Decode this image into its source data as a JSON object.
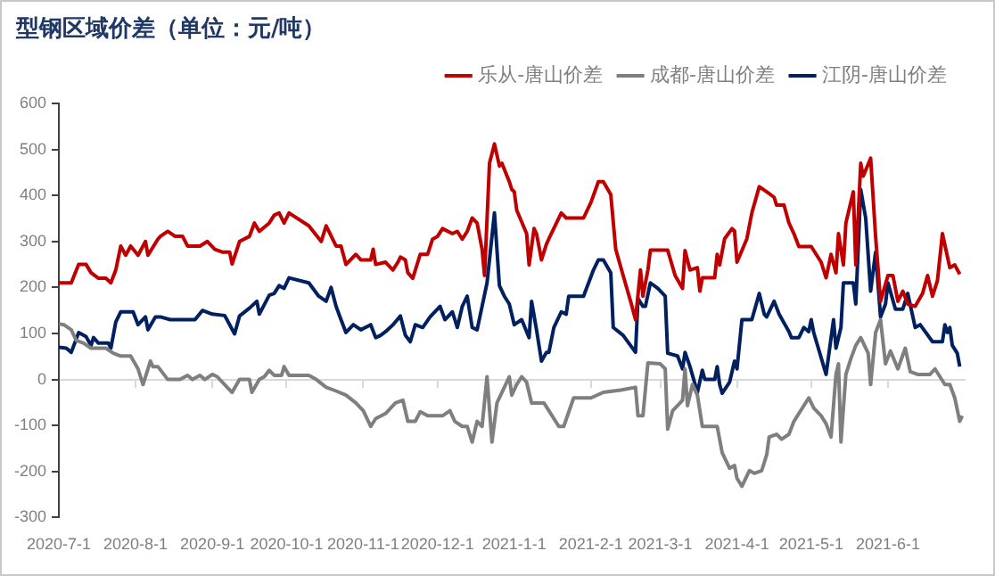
{
  "chart_data": {
    "type": "line",
    "title": "型钢区域价差（单位：元/吨）",
    "legend": "top right",
    "marker": "none",
    "line_style": "solid",
    "xlim": [
      "2020-07-01",
      "2021-07-02"
    ],
    "xticks": [
      {
        "value": "2020-07-01",
        "label": "2020-7-1"
      },
      {
        "value": "2020-08-01",
        "label": "2020-8-1"
      },
      {
        "value": "2020-09-01",
        "label": "2020-9-1"
      },
      {
        "value": "2020-10-01",
        "label": "2020-10-1"
      },
      {
        "value": "2020-11-01",
        "label": "2020-11-1"
      },
      {
        "value": "2020-12-01",
        "label": "2020-12-1"
      },
      {
        "value": "2021-01-01",
        "label": "2021-1-1"
      },
      {
        "value": "2021-02-01",
        "label": "2021-2-1"
      },
      {
        "value": "2021-03-01",
        "label": "2021-3-1"
      },
      {
        "value": "2021-04-01",
        "label": "2021-4-1"
      },
      {
        "value": "2021-05-01",
        "label": "2021-5-1"
      },
      {
        "value": "2021-06-01",
        "label": "2021-6-1"
      }
    ],
    "ylim": [
      -300,
      600
    ],
    "yticks": [
      -300,
      -200,
      -100,
      0,
      100,
      200,
      300,
      400,
      500,
      600
    ],
    "series": [
      {
        "name": "乐从-唐山价差",
        "color": "#c00000",
        "x": [
          "2020-07-01",
          "2020-07-06",
          "2020-07-09",
          "2020-07-12",
          "2020-07-14",
          "2020-07-17",
          "2020-07-20",
          "2020-07-22",
          "2020-07-24",
          "2020-07-26",
          "2020-07-28",
          "2020-07-30",
          "2020-08-02",
          "2020-08-05",
          "2020-08-06",
          "2020-08-10",
          "2020-08-11",
          "2020-08-14",
          "2020-08-17",
          "2020-08-20",
          "2020-08-22",
          "2020-08-27",
          "2020-08-30",
          "2020-09-02",
          "2020-09-05",
          "2020-09-08",
          "2020-09-09",
          "2020-09-12",
          "2020-09-16",
          "2020-09-18",
          "2020-09-20",
          "2020-09-24",
          "2020-09-26",
          "2020-09-28",
          "2020-09-30",
          "2020-10-02",
          "2020-10-10",
          "2020-10-15",
          "2020-10-17",
          "2020-10-21",
          "2020-10-23",
          "2020-10-25",
          "2020-10-29",
          "2020-10-31",
          "2020-11-04",
          "2020-11-05",
          "2020-11-06",
          "2020-11-10",
          "2020-11-13",
          "2020-11-15",
          "2020-11-16",
          "2020-11-18",
          "2020-11-19",
          "2020-11-21",
          "2020-11-24",
          "2020-11-27",
          "2020-11-29",
          "2020-12-01",
          "2020-12-03",
          "2020-12-07",
          "2020-12-09",
          "2020-12-11",
          "2020-12-13",
          "2020-12-15",
          "2020-12-17",
          "2020-12-19",
          "2020-12-20",
          "2020-12-22",
          "2020-12-24",
          "2020-12-26",
          "2020-12-27",
          "2020-12-30",
          "2020-12-31",
          "2021-01-01",
          "2021-01-02",
          "2021-01-06",
          "2021-01-07",
          "2021-01-09",
          "2021-01-10",
          "2021-01-12",
          "2021-01-14",
          "2021-01-15",
          "2021-01-20",
          "2021-01-22",
          "2021-01-29",
          "2021-02-01",
          "2021-02-04",
          "2021-02-06",
          "2021-02-09",
          "2021-02-11",
          "2021-02-14",
          "2021-02-17",
          "2021-02-19",
          "2021-02-21",
          "2021-02-22",
          "2021-02-24",
          "2021-02-25",
          "2021-03-04",
          "2021-03-07",
          "2021-03-10",
          "2021-03-11",
          "2021-03-13",
          "2021-03-16",
          "2021-03-17",
          "2021-03-18",
          "2021-03-23",
          "2021-03-24",
          "2021-03-25",
          "2021-03-27",
          "2021-03-30",
          "2021-03-31",
          "2021-04-01",
          "2021-04-05",
          "2021-04-07",
          "2021-04-10",
          "2021-04-13",
          "2021-04-16",
          "2021-04-17",
          "2021-04-20",
          "2021-04-22",
          "2021-04-24",
          "2021-04-26",
          "2021-05-01",
          "2021-05-05",
          "2021-05-07",
          "2021-05-09",
          "2021-05-11",
          "2021-05-12",
          "2021-05-14",
          "2021-05-15",
          "2021-05-18",
          "2021-05-19",
          "2021-05-21",
          "2021-05-22",
          "2021-05-25",
          "2021-05-27",
          "2021-05-29",
          "2021-06-01",
          "2021-06-03",
          "2021-06-05",
          "2021-06-07",
          "2021-06-09",
          "2021-06-12",
          "2021-06-15",
          "2021-06-17",
          "2021-06-19",
          "2021-06-21",
          "2021-06-23",
          "2021-06-26",
          "2021-06-28",
          "2021-06-30"
        ],
        "values": [
          210,
          210,
          250,
          250,
          232,
          220,
          220,
          210,
          238,
          290,
          270,
          290,
          270,
          300,
          270,
          305,
          311,
          322,
          311,
          311,
          290,
          290,
          300,
          283,
          277,
          277,
          251,
          300,
          311,
          340,
          322,
          340,
          357,
          362,
          340,
          362,
          334,
          300,
          334,
          290,
          290,
          250,
          272,
          260,
          260,
          283,
          250,
          255,
          238,
          255,
          266,
          260,
          232,
          220,
          272,
          272,
          305,
          311,
          328,
          317,
          322,
          305,
          322,
          351,
          340,
          283,
          226,
          470,
          512,
          464,
          470,
          430,
          413,
          408,
          368,
          317,
          249,
          328,
          317,
          260,
          294,
          306,
          362,
          351,
          351,
          385,
          430,
          430,
          402,
          283,
          226,
          170,
          130,
          238,
          181,
          238,
          281,
          281,
          226,
          198,
          280,
          238,
          243,
          192,
          221,
          221,
          272,
          249,
          306,
          328,
          323,
          255,
          306,
          362,
          419,
          408,
          396,
          379,
          379,
          340,
          317,
          289,
          289,
          255,
          221,
          272,
          232,
          317,
          249,
          340,
          408,
          249,
          470,
          442,
          481,
          311,
          170,
          226,
          226,
          170,
          192,
          164,
          159,
          187,
          226,
          181,
          215,
          317,
          243,
          249,
          229
        ]
      },
      {
        "name": "成都-唐山价差",
        "color": "#7f7f7f",
        "x": [
          "2020-07-01",
          "2020-07-03",
          "2020-07-06",
          "2020-07-08",
          "2020-07-11",
          "2020-07-14",
          "2020-07-20",
          "2020-07-23",
          "2020-07-26",
          "2020-07-30",
          "2020-08-02",
          "2020-08-04",
          "2020-08-07",
          "2020-08-08",
          "2020-08-10",
          "2020-08-14",
          "2020-08-19",
          "2020-08-22",
          "2020-08-24",
          "2020-08-27",
          "2020-08-29",
          "2020-09-01",
          "2020-09-03",
          "2020-09-07",
          "2020-09-09",
          "2020-09-12",
          "2020-09-16",
          "2020-09-17",
          "2020-09-20",
          "2020-09-22",
          "2020-09-24",
          "2020-09-26",
          "2020-09-29",
          "2020-09-30",
          "2020-10-02",
          "2020-10-10",
          "2020-10-13",
          "2020-10-17",
          "2020-10-21",
          "2020-10-25",
          "2020-10-29",
          "2020-11-01",
          "2020-11-04",
          "2020-11-06",
          "2020-11-10",
          "2020-11-14",
          "2020-11-17",
          "2020-11-19",
          "2020-11-22",
          "2020-11-24",
          "2020-11-27",
          "2020-12-03",
          "2020-12-06",
          "2020-12-08",
          "2020-12-11",
          "2020-12-13",
          "2020-12-15",
          "2020-12-17",
          "2020-12-19",
          "2020-12-21",
          "2020-12-23",
          "2020-12-25",
          "2020-12-28",
          "2020-12-30",
          "2020-12-31",
          "2021-01-02",
          "2021-01-04",
          "2021-01-06",
          "2021-01-08",
          "2021-01-13",
          "2021-01-15",
          "2021-01-19",
          "2021-01-21",
          "2021-01-25",
          "2021-02-01",
          "2021-02-06",
          "2021-02-13",
          "2021-02-19",
          "2021-02-20",
          "2021-02-22",
          "2021-02-24",
          "2021-03-01",
          "2021-03-03",
          "2021-03-04",
          "2021-03-06",
          "2021-03-09",
          "2021-03-10",
          "2021-03-11",
          "2021-03-12",
          "2021-03-14",
          "2021-03-16",
          "2021-03-18",
          "2021-03-24",
          "2021-03-26",
          "2021-03-29",
          "2021-03-31",
          "2021-04-01",
          "2021-04-03",
          "2021-04-06",
          "2021-04-08",
          "2021-04-11",
          "2021-04-13",
          "2021-04-14",
          "2021-04-17",
          "2021-04-19",
          "2021-04-22",
          "2021-04-24",
          "2021-04-26",
          "2021-04-30",
          "2021-05-02",
          "2021-05-05",
          "2021-05-07",
          "2021-05-09",
          "2021-05-11",
          "2021-05-12",
          "2021-05-13",
          "2021-05-15",
          "2021-05-17",
          "2021-05-19",
          "2021-05-21",
          "2021-05-24",
          "2021-05-25",
          "2021-05-27",
          "2021-05-29",
          "2021-05-31",
          "2021-06-02",
          "2021-06-05",
          "2021-06-08",
          "2021-06-10",
          "2021-06-13",
          "2021-06-18",
          "2021-06-20",
          "2021-06-24",
          "2021-06-26",
          "2021-06-28",
          "2021-06-30",
          "2021-07-01"
        ],
        "values": [
          121,
          119,
          108,
          85,
          79,
          68,
          68,
          57,
          51,
          51,
          23,
          -11,
          40,
          28,
          28,
          0,
          0,
          9,
          0,
          9,
          0,
          11,
          6,
          -17,
          -28,
          0,
          0,
          -28,
          0,
          6,
          20,
          9,
          9,
          28,
          9,
          9,
          0,
          -17,
          -25,
          -34,
          -51,
          -68,
          -102,
          -85,
          -74,
          -51,
          -45,
          -91,
          -91,
          -70,
          -79,
          -79,
          -68,
          -91,
          -102,
          -102,
          -136,
          -91,
          -102,
          6,
          -136,
          -51,
          -17,
          6,
          -34,
          -11,
          6,
          -6,
          -51,
          -51,
          -68,
          -102,
          -102,
          -40,
          -40,
          -28,
          -23,
          -17,
          -79,
          -79,
          36,
          34,
          23,
          -108,
          -68,
          -51,
          -45,
          23,
          -57,
          -11,
          -34,
          -102,
          -102,
          -159,
          -193,
          -187,
          -215,
          -232,
          -198,
          -204,
          -198,
          -164,
          -125,
          -119,
          -130,
          -119,
          -91,
          -74,
          -40,
          -62,
          -79,
          -96,
          -125,
          11,
          34,
          -136,
          11,
          45,
          74,
          91,
          57,
          -11,
          102,
          130,
          34,
          62,
          23,
          68,
          17,
          11,
          11,
          23,
          -11,
          -11,
          -40,
          -91,
          -79
        ]
      },
      {
        "name": "江阴-唐山价差",
        "color": "#002060",
        "x": [
          "2020-07-01",
          "2020-07-04",
          "2020-07-06",
          "2020-07-09",
          "2020-07-12",
          "2020-07-14",
          "2020-07-15",
          "2020-07-17",
          "2020-07-21",
          "2020-07-22",
          "2020-07-24",
          "2020-07-26",
          "2020-07-28",
          "2020-07-31",
          "2020-08-02",
          "2020-08-05",
          "2020-08-06",
          "2020-08-09",
          "2020-08-11",
          "2020-08-15",
          "2020-08-25",
          "2020-08-28",
          "2020-09-01",
          "2020-09-06",
          "2020-09-10",
          "2020-09-12",
          "2020-09-16",
          "2020-09-19",
          "2020-09-20",
          "2020-09-24",
          "2020-09-26",
          "2020-09-28",
          "2020-09-30",
          "2020-10-02",
          "2020-10-10",
          "2020-10-14",
          "2020-10-17",
          "2020-10-19",
          "2020-10-21",
          "2020-10-23",
          "2020-10-25",
          "2020-10-28",
          "2020-10-31",
          "2020-11-04",
          "2020-11-06",
          "2020-11-08",
          "2020-11-10",
          "2020-11-13",
          "2020-11-16",
          "2020-11-18",
          "2020-11-20",
          "2020-11-22",
          "2020-11-25",
          "2020-11-28",
          "2020-12-02",
          "2020-12-04",
          "2020-12-07",
          "2020-12-09",
          "2020-12-11",
          "2020-12-13",
          "2020-12-15",
          "2020-12-17",
          "2020-12-21",
          "2020-12-24",
          "2020-12-26",
          "2020-12-28",
          "2020-12-30",
          "2021-01-01",
          "2021-01-04",
          "2021-01-07",
          "2021-01-08",
          "2021-01-10",
          "2021-01-12",
          "2021-01-14",
          "2021-01-15",
          "2021-01-17",
          "2021-01-20",
          "2021-01-22",
          "2021-01-23",
          "2021-01-29",
          "2021-02-02",
          "2021-02-04",
          "2021-02-06",
          "2021-02-09",
          "2021-02-10",
          "2021-02-14",
          "2021-02-19",
          "2021-02-20",
          "2021-02-22",
          "2021-02-23",
          "2021-02-25",
          "2021-02-28",
          "2021-03-03",
          "2021-03-04",
          "2021-03-08",
          "2021-03-10",
          "2021-03-11",
          "2021-03-13",
          "2021-03-16",
          "2021-03-18",
          "2021-03-19",
          "2021-03-23",
          "2021-03-24",
          "2021-03-25",
          "2021-03-26",
          "2021-03-29",
          "2021-03-31",
          "2021-04-01",
          "2021-04-03",
          "2021-04-07",
          "2021-04-10",
          "2021-04-12",
          "2021-04-13",
          "2021-04-16",
          "2021-04-18",
          "2021-04-22",
          "2021-04-23",
          "2021-04-26",
          "2021-04-28",
          "2021-04-30",
          "2021-05-01",
          "2021-05-02",
          "2021-05-07",
          "2021-05-10",
          "2021-05-11",
          "2021-05-13",
          "2021-05-14",
          "2021-05-18",
          "2021-05-19",
          "2021-05-21",
          "2021-05-23",
          "2021-05-25",
          "2021-05-27",
          "2021-05-29",
          "2021-05-31",
          "2021-06-01",
          "2021-06-04",
          "2021-06-07",
          "2021-06-09",
          "2021-06-12",
          "2021-06-14",
          "2021-06-19",
          "2021-06-23",
          "2021-06-24",
          "2021-06-25",
          "2021-06-26",
          "2021-06-27",
          "2021-06-29",
          "2021-06-30"
        ],
        "values": [
          70,
          68,
          59,
          102,
          93,
          74,
          91,
          79,
          79,
          68,
          125,
          147,
          147,
          147,
          119,
          136,
          108,
          136,
          136,
          130,
          130,
          150,
          142,
          139,
          99,
          138,
          155,
          170,
          142,
          183,
          187,
          204,
          198,
          221,
          210,
          181,
          170,
          200,
          159,
          130,
          102,
          119,
          108,
          119,
          91,
          96,
          104,
          119,
          138,
          96,
          82,
          119,
          113,
          136,
          159,
          130,
          147,
          113,
          159,
          181,
          113,
          108,
          210,
          362,
          204,
          181,
          164,
          119,
          130,
          91,
          170,
          108,
          40,
          59,
          59,
          113,
          147,
          142,
          181,
          181,
          238,
          260,
          260,
          232,
          113,
          96,
          59,
          176,
          159,
          159,
          210,
          198,
          181,
          57,
          51,
          23,
          59,
          28,
          -28,
          20,
          0,
          0,
          28,
          -11,
          -30,
          -6,
          40,
          23,
          130,
          130,
          187,
          142,
          136,
          170,
          142,
          104,
          91,
          91,
          113,
          104,
          130,
          102,
          11,
          130,
          68,
          113,
          210,
          210,
          164,
          413,
          351,
          192,
          277,
          136,
          164,
          210,
          153,
          153,
          187,
          113,
          119,
          82,
          82,
          119,
          102,
          113,
          74,
          57,
          28
        ]
      }
    ]
  }
}
